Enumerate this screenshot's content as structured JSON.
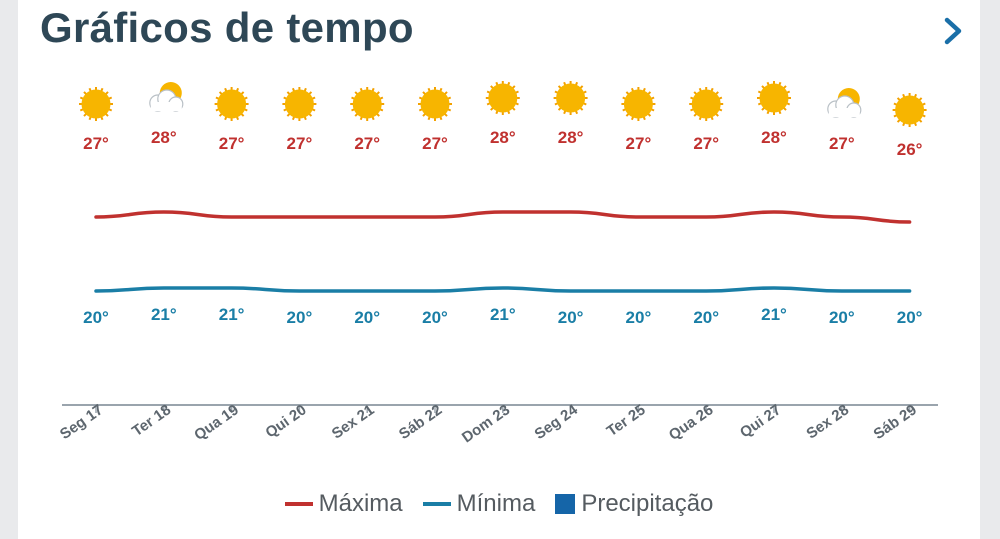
{
  "header": {
    "title": "Gráficos de tempo"
  },
  "colors": {
    "max": "#c0312f",
    "min": "#1a7ea6",
    "precip": "#1565a8",
    "sun": "#f7b500",
    "axis": "#9aa4ad"
  },
  "chart_data": {
    "type": "line",
    "categories": [
      "Seg 17",
      "Ter 18",
      "Qua 19",
      "Qui 20",
      "Sex 21",
      "Sáb 22",
      "Dom 23",
      "Seg 24",
      "Ter 25",
      "Qua 26",
      "Qui 27",
      "Sex 28",
      "Sáb 29"
    ],
    "icons": [
      "sun-icon",
      "partly-cloudy-icon",
      "sun-icon",
      "sun-icon",
      "sun-icon",
      "sun-icon",
      "sun-icon",
      "sun-icon",
      "sun-icon",
      "sun-icon",
      "sun-icon",
      "partly-cloudy-icon",
      "sun-icon"
    ],
    "series": [
      {
        "name": "Máxima",
        "values": [
          27,
          28,
          27,
          27,
          27,
          27,
          28,
          28,
          27,
          27,
          28,
          27,
          26
        ],
        "labels": [
          "27°",
          "28°",
          "27°",
          "27°",
          "27°",
          "27°",
          "28°",
          "28°",
          "27°",
          "27°",
          "28°",
          "27°",
          "26°"
        ]
      },
      {
        "name": "Mínima",
        "values": [
          20,
          21,
          21,
          20,
          20,
          20,
          21,
          20,
          20,
          20,
          21,
          20,
          20
        ],
        "labels": [
          "20°",
          "21°",
          "21°",
          "20°",
          "20°",
          "20°",
          "21°",
          "20°",
          "20°",
          "20°",
          "21°",
          "20°",
          "20°"
        ]
      }
    ],
    "legend": [
      "Máxima",
      "Mínima",
      "Precipitação"
    ]
  }
}
